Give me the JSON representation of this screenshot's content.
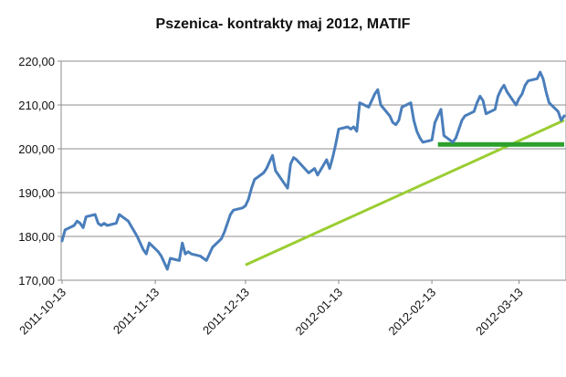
{
  "chart_data": {
    "type": "line",
    "title": "Pszenica- kontrakty maj 2012, MATIF",
    "xlabel": "",
    "ylabel": "",
    "ylim": [
      170,
      220
    ],
    "y_ticks": [
      "170,00",
      "180,00",
      "190,00",
      "200,00",
      "210,00",
      "220,00"
    ],
    "x_ticks": [
      "2011-10-13",
      "2011-11-13",
      "2011-12-13",
      "2012-01-13",
      "2012-02-13",
      "2012-03-13"
    ],
    "grid": true,
    "legend": "none",
    "series": [
      {
        "color": "#4a7ebb",
        "x": [
          "2011-10-13",
          "2011-10-14",
          "2011-10-17",
          "2011-10-18",
          "2011-10-19",
          "2011-10-20",
          "2011-10-21",
          "2011-10-24",
          "2011-10-25",
          "2011-10-26",
          "2011-10-27",
          "2011-10-28",
          "2011-10-31",
          "2011-11-01",
          "2011-11-02",
          "2011-11-03",
          "2011-11-04",
          "2011-11-07",
          "2011-11-08",
          "2011-11-09",
          "2011-11-10",
          "2011-11-11",
          "2011-11-14",
          "2011-11-15",
          "2011-11-16",
          "2011-11-17",
          "2011-11-18",
          "2011-11-21",
          "2011-11-22",
          "2011-11-23",
          "2011-11-24",
          "2011-11-25",
          "2011-11-28",
          "2011-11-29",
          "2011-11-30",
          "2011-12-01",
          "2011-12-02",
          "2011-12-05",
          "2011-12-06",
          "2011-12-07",
          "2011-12-08",
          "2011-12-09",
          "2011-12-12",
          "2011-12-13",
          "2011-12-14",
          "2011-12-15",
          "2011-12-16",
          "2011-12-19",
          "2011-12-20",
          "2011-12-21",
          "2011-12-22",
          "2011-12-23",
          "2011-12-27",
          "2011-12-28",
          "2011-12-29",
          "2011-12-30",
          "2012-01-03",
          "2012-01-04",
          "2012-01-05",
          "2012-01-06",
          "2012-01-09",
          "2012-01-10",
          "2012-01-11",
          "2012-01-12",
          "2012-01-13",
          "2012-01-16",
          "2012-01-17",
          "2012-01-18",
          "2012-01-19",
          "2012-01-20",
          "2012-01-23",
          "2012-01-24",
          "2012-01-25",
          "2012-01-26",
          "2012-01-27",
          "2012-01-30",
          "2012-01-31",
          "2012-02-01",
          "2012-02-02",
          "2012-02-03",
          "2012-02-06",
          "2012-02-07",
          "2012-02-08",
          "2012-02-09",
          "2012-02-10",
          "2012-02-13",
          "2012-02-14",
          "2012-02-15",
          "2012-02-16",
          "2012-02-17",
          "2012-02-20",
          "2012-02-21",
          "2012-02-22",
          "2012-02-23",
          "2012-02-24",
          "2012-02-27",
          "2012-02-28",
          "2012-02-29",
          "2012-03-01",
          "2012-03-02",
          "2012-03-05",
          "2012-03-06",
          "2012-03-07",
          "2012-03-08",
          "2012-03-09",
          "2012-03-12",
          "2012-03-13",
          "2012-03-14",
          "2012-03-15",
          "2012-03-16",
          "2012-03-19",
          "2012-03-20",
          "2012-03-21",
          "2012-03-22",
          "2012-03-23",
          "2012-03-26",
          "2012-03-27",
          "2012-03-28"
        ],
        "values": [
          179.0,
          181.5,
          182.5,
          183.5,
          183.0,
          182.0,
          184.5,
          185.0,
          183.0,
          182.5,
          183.0,
          182.5,
          183.0,
          185.0,
          184.5,
          184.0,
          183.5,
          180.0,
          178.5,
          177.0,
          176.0,
          178.5,
          176.5,
          175.5,
          174.0,
          172.5,
          175.0,
          174.5,
          178.5,
          176.0,
          176.5,
          176.0,
          175.5,
          175.0,
          174.5,
          176.0,
          177.5,
          179.5,
          181.0,
          183.0,
          185.0,
          186.0,
          186.5,
          187.0,
          188.5,
          191.0,
          193.0,
          194.5,
          195.5,
          197.0,
          198.5,
          195.0,
          191.0,
          196.5,
          198.0,
          197.5,
          194.5,
          195.0,
          195.5,
          194.0,
          197.5,
          195.5,
          198.0,
          201.0,
          204.5,
          205.0,
          204.5,
          205.0,
          204.0,
          210.5,
          209.5,
          211.0,
          212.5,
          213.5,
          210.0,
          207.5,
          206.0,
          205.5,
          206.5,
          209.5,
          210.5,
          206.5,
          204.0,
          202.5,
          201.5,
          202.0,
          206.0,
          207.5,
          209.0,
          203.0,
          201.5,
          202.5,
          204.5,
          206.5,
          207.5,
          208.5,
          210.5,
          212.0,
          211.0,
          208.0,
          209.0,
          212.0,
          213.5,
          214.5,
          213.0,
          210.0,
          211.5,
          212.5,
          214.5,
          215.5,
          216.0,
          217.5,
          216.0,
          213.0,
          210.5,
          208.5,
          206.5,
          207.5
        ]
      }
    ],
    "annotations": [
      {
        "kind": "trendline",
        "color": "#9acd32",
        "from": {
          "x": "2011-12-13",
          "y": 173.5
        },
        "to": {
          "x": "2012-03-28",
          "y": 206.5
        }
      },
      {
        "kind": "horizontal-level",
        "color": "#2ca02c",
        "from": {
          "x": "2012-02-15",
          "y": 201.0
        },
        "to": {
          "x": "2012-03-28",
          "y": 201.0
        }
      }
    ]
  }
}
